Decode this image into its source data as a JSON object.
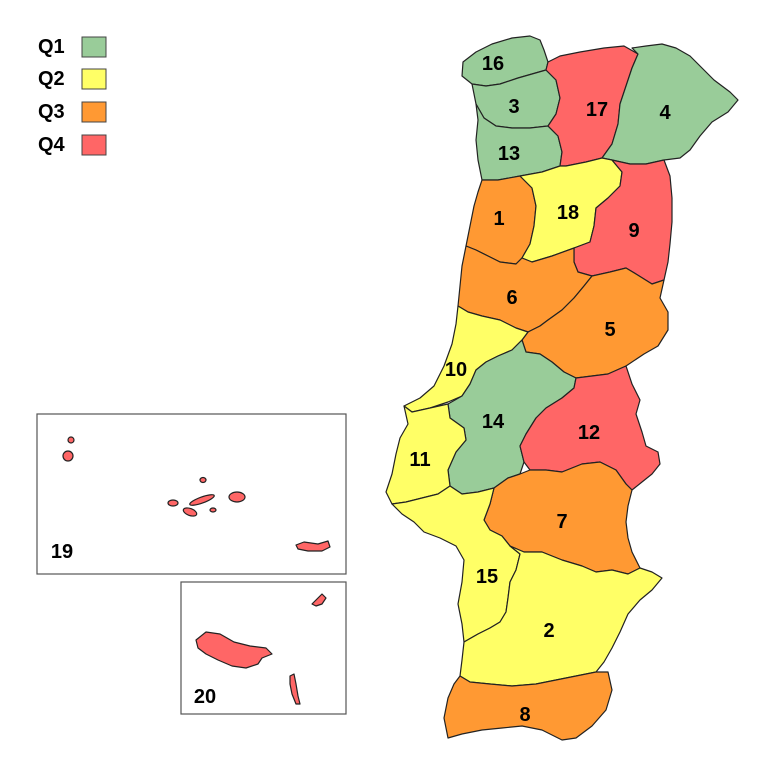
{
  "legend": [
    {
      "label": "Q1",
      "color": "#99cc99"
    },
    {
      "label": "Q2",
      "color": "#ffff66"
    },
    {
      "label": "Q3",
      "color": "#ff9933"
    },
    {
      "label": "Q4",
      "color": "#ff6666"
    }
  ],
  "regions": [
    {
      "id": "16",
      "quartile": "Q1"
    },
    {
      "id": "3",
      "quartile": "Q1"
    },
    {
      "id": "13",
      "quartile": "Q1"
    },
    {
      "id": "17",
      "quartile": "Q4"
    },
    {
      "id": "4",
      "quartile": "Q1"
    },
    {
      "id": "1",
      "quartile": "Q3"
    },
    {
      "id": "18",
      "quartile": "Q2"
    },
    {
      "id": "9",
      "quartile": "Q4"
    },
    {
      "id": "6",
      "quartile": "Q3"
    },
    {
      "id": "5",
      "quartile": "Q3"
    },
    {
      "id": "10",
      "quartile": "Q2"
    },
    {
      "id": "14",
      "quartile": "Q1"
    },
    {
      "id": "12",
      "quartile": "Q4"
    },
    {
      "id": "11",
      "quartile": "Q2"
    },
    {
      "id": "7",
      "quartile": "Q3"
    },
    {
      "id": "15",
      "quartile": "Q2"
    },
    {
      "id": "2",
      "quartile": "Q2"
    },
    {
      "id": "8",
      "quartile": "Q3"
    },
    {
      "id": "19",
      "quartile": "Q4"
    },
    {
      "id": "20",
      "quartile": "Q4"
    }
  ]
}
